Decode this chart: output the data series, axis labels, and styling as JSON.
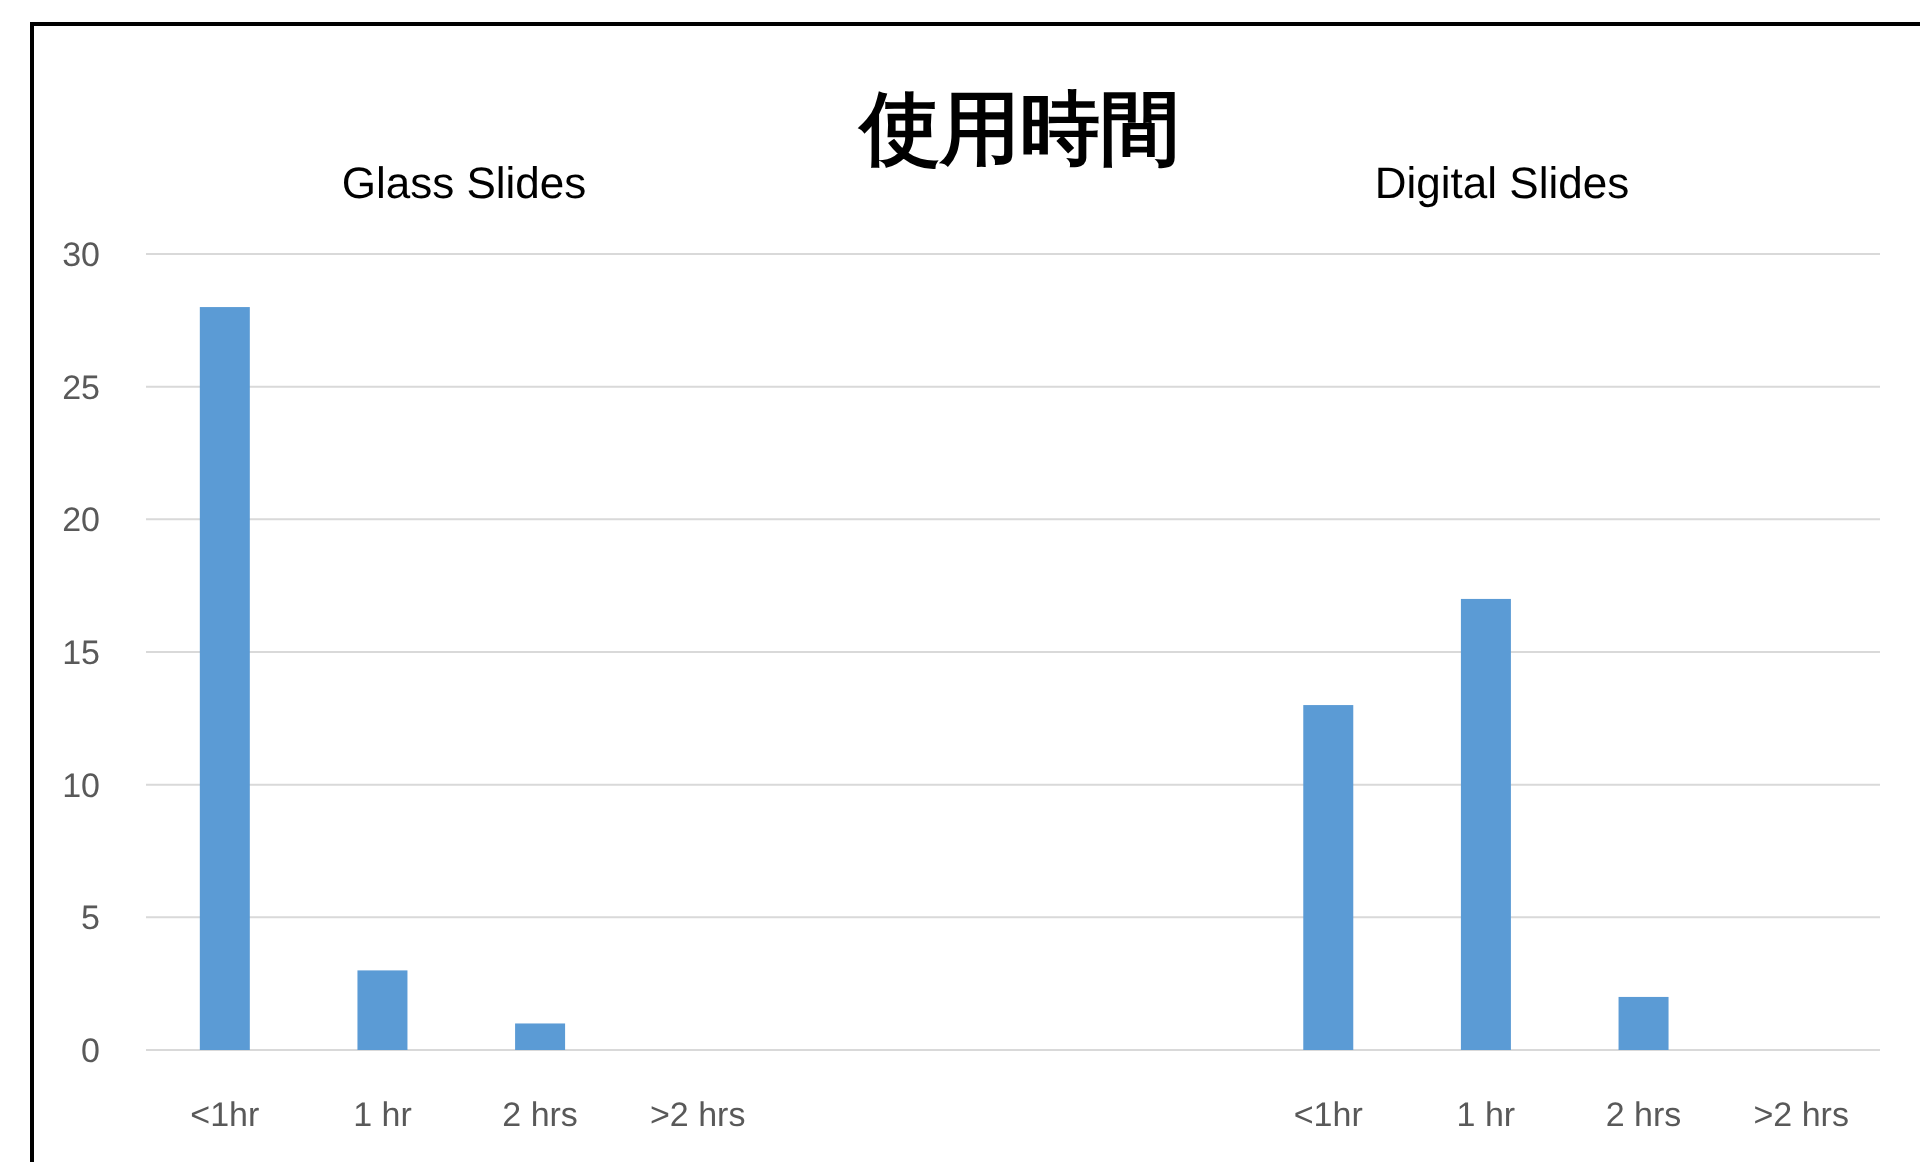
{
  "chart_data": {
    "type": "bar",
    "title": "使用時間",
    "categories": [
      "<1hr",
      "1 hr",
      "2 hrs",
      ">2 hrs",
      null,
      null,
      null,
      "<1hr",
      "1 hr",
      "2 hrs",
      ">2 hrs"
    ],
    "values": [
      28,
      3,
      1,
      0,
      null,
      null,
      null,
      13,
      17,
      2,
      0
    ],
    "color": "#5b9bd5",
    "ylim": [
      0,
      30
    ],
    "yticks": [
      0,
      5,
      10,
      15,
      20,
      25,
      30
    ],
    "grid": "y",
    "annotations": [
      "Glass Slides",
      "Digital Slides"
    ]
  }
}
